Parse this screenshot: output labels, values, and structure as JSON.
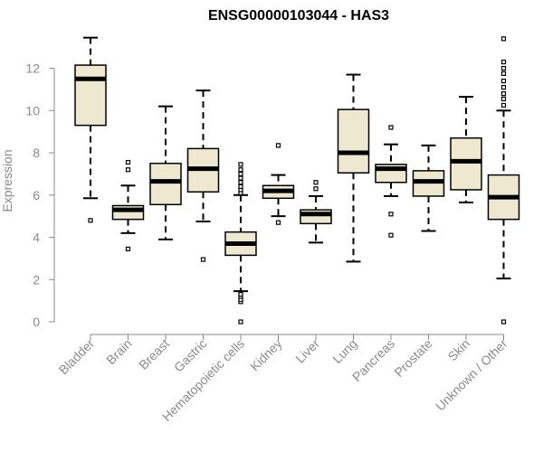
{
  "chart_data": {
    "type": "box",
    "title": "ENSG00000103044 - HAS3",
    "ylabel": "Expression",
    "xlabel": "",
    "ylim": [
      0,
      13.5
    ],
    "yticks": [
      0,
      2,
      4,
      6,
      8,
      10,
      12
    ],
    "box_fill": "#efe8d0",
    "colors": {
      "axis": "#8a8a8a",
      "box_stroke": "#000000",
      "median": "#000000"
    },
    "categories": [
      "Bladder",
      "Brain",
      "Breast",
      "Gastric",
      "Hematopoietic cells",
      "Kidney",
      "Liver",
      "Lung",
      "Pancreas",
      "Prostate",
      "Skin",
      "Unknown / Other"
    ],
    "boxes": [
      {
        "category": "Bladder",
        "whisker_low": 5.85,
        "q1": 9.3,
        "median": 11.5,
        "q3": 12.15,
        "whisker_high": 13.45,
        "outliers": [
          4.8
        ]
      },
      {
        "category": "Brain",
        "whisker_low": 4.2,
        "q1": 4.85,
        "median": 5.3,
        "q3": 5.5,
        "whisker_high": 6.45,
        "outliers": [
          3.45,
          7.2,
          7.55
        ]
      },
      {
        "category": "Breast",
        "whisker_low": 3.9,
        "q1": 5.55,
        "median": 6.65,
        "q3": 7.5,
        "whisker_high": 10.2,
        "outliers": []
      },
      {
        "category": "Gastric",
        "whisker_low": 4.75,
        "q1": 6.15,
        "median": 7.25,
        "q3": 8.2,
        "whisker_high": 10.95,
        "outliers": [
          2.95
        ]
      },
      {
        "category": "Hematopoietic cells",
        "whisker_low": 1.45,
        "q1": 3.15,
        "median": 3.7,
        "q3": 4.25,
        "whisker_high": 6.0,
        "outliers": [
          0.0,
          0.95,
          1.05,
          1.2,
          1.3,
          6.1,
          6.25,
          6.4,
          6.6,
          6.8,
          7.0,
          7.2,
          7.45
        ]
      },
      {
        "category": "Kidney",
        "whisker_low": 5.0,
        "q1": 5.85,
        "median": 6.2,
        "q3": 6.45,
        "whisker_high": 6.95,
        "outliers": [
          4.7,
          8.35
        ]
      },
      {
        "category": "Liver",
        "whisker_low": 3.75,
        "q1": 4.65,
        "median": 5.1,
        "q3": 5.3,
        "whisker_high": 5.95,
        "outliers": [
          6.3,
          6.6
        ]
      },
      {
        "category": "Lung",
        "whisker_low": 2.85,
        "q1": 7.05,
        "median": 8.0,
        "q3": 10.05,
        "whisker_high": 11.7,
        "outliers": []
      },
      {
        "category": "Pancreas",
        "whisker_low": 5.95,
        "q1": 6.6,
        "median": 7.25,
        "q3": 7.45,
        "whisker_high": 8.4,
        "outliers": [
          4.1,
          5.1,
          9.2
        ]
      },
      {
        "category": "Prostate",
        "whisker_low": 4.3,
        "q1": 5.95,
        "median": 6.65,
        "q3": 7.15,
        "whisker_high": 8.35,
        "outliers": []
      },
      {
        "category": "Skin",
        "whisker_low": 5.65,
        "q1": 6.25,
        "median": 7.6,
        "q3": 8.7,
        "whisker_high": 10.65,
        "outliers": []
      },
      {
        "category": "Unknown / Other",
        "whisker_low": 2.05,
        "q1": 4.85,
        "median": 5.9,
        "q3": 6.95,
        "whisker_high": 10.0,
        "outliers": [
          0.0,
          10.25,
          10.55,
          10.8,
          11.1,
          11.4,
          11.75,
          12.0,
          12.3,
          13.4
        ]
      }
    ]
  }
}
